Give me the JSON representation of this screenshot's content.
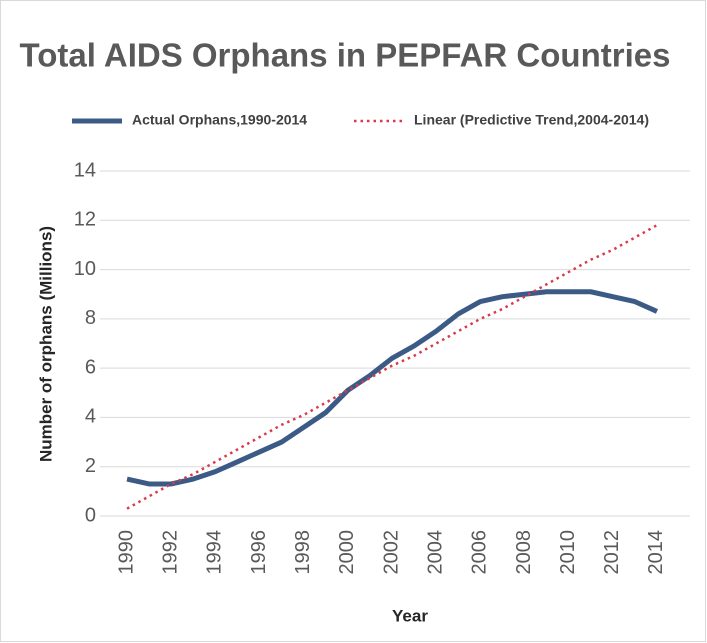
{
  "chart_data": {
    "type": "line",
    "title": "Total AIDS Orphans in PEPFAR Countries",
    "x_label": "Year",
    "y_label": "Number of orphans (Millions)",
    "x": [
      1990,
      1991,
      1992,
      1993,
      1994,
      1995,
      1996,
      1997,
      1998,
      1999,
      2000,
      2001,
      2002,
      2003,
      2004,
      2005,
      2006,
      2007,
      2008,
      2009,
      2010,
      2011,
      2012,
      2013,
      2014
    ],
    "series": [
      {
        "name": "Actual Orphans,1990-2014",
        "color": "#3b5b86",
        "style": "solid",
        "values": [
          1.5,
          1.3,
          1.3,
          1.5,
          1.8,
          2.2,
          2.6,
          3.0,
          3.6,
          4.2,
          5.1,
          5.7,
          6.4,
          6.9,
          7.5,
          8.2,
          8.7,
          8.9,
          9.0,
          9.1,
          9.1,
          9.1,
          8.9,
          8.7,
          8.3
        ]
      },
      {
        "name": "Linear (Predictive Trend,2004-2014)",
        "color": "#d9394a",
        "style": "dotted",
        "values": [
          0.3,
          0.8,
          1.3,
          1.7,
          2.2,
          2.7,
          3.2,
          3.7,
          4.1,
          4.6,
          5.1,
          5.6,
          6.1,
          6.5,
          7.0,
          7.5,
          8.0,
          8.4,
          8.9,
          9.4,
          9.9,
          10.4,
          10.8,
          11.3,
          11.8
        ]
      }
    ],
    "xlim": [
      1989.5,
      2014.5
    ],
    "xticks": [
      1990,
      1992,
      1994,
      1996,
      1998,
      2000,
      2002,
      2004,
      2006,
      2008,
      2010,
      2012,
      2014
    ],
    "ylim": [
      0,
      14
    ],
    "yticks": [
      0,
      2,
      4,
      6,
      8,
      10,
      12,
      14
    ],
    "grid": true,
    "legend": "top"
  }
}
